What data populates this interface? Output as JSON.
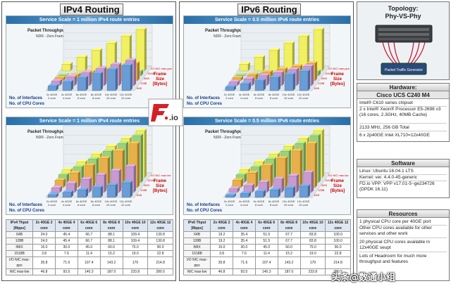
{
  "ipv4": {
    "title": "IPv4 Routing",
    "top_scale": "Service Scale = 1 million IPv4 route entries",
    "bottom_scale": "Service Scale = 1 million IPv4 route entries",
    "top_chart_title": "Packet Throughput [Mpps]",
    "top_chart_sub": "NDR - Zero Frame Loss",
    "bottom_chart_title": "Packet Throughput [Gbps]",
    "bottom_chart_sub": "NDR - Zero Frame Loss"
  },
  "ipv6": {
    "title": "IPv6 Routing",
    "top_scale": "Service Scale = 0.5 million IPv6 route entries",
    "bottom_scale": "Service Scale = 0.5 million IPv6 route entries",
    "top_chart_title": "Packet Throughput [Mpps]",
    "top_chart_sub": "NDR - Zero Frame Loss",
    "bottom_chart_title": "Packet Throughput [Gbps]",
    "bottom_chart_sub": "NDR - Zero Frame Loss"
  },
  "axis_labels": {
    "interfaces": "No. of Interfaces",
    "cores": "No. of CPU Cores",
    "frame_size": "Frame Size [Bytes]"
  },
  "topology": {
    "title": "Topology:",
    "subtitle": "Phy-VS-Phy",
    "caption": "Packet Traffic Generator"
  },
  "hardware": {
    "title": "Hardware:",
    "model": "Cisco UCS C240 M4",
    "lines": [
      "Intel® C610 series chipset",
      "2 x Intel® Xeon® Processor E5-2698 v3 (16 cores, 2.3GHz, 40MB Cache)",
      "2133 MHz, 256 GB Total",
      "6 x 2p40GE Intel XL710=12x40GE"
    ]
  },
  "software": {
    "title": "Software",
    "lines": [
      "Linux: Ubuntu 16.04.1 LTS",
      "Kernel: ver. 4.4.0-45-generic",
      "FD.io VPP: VPP v17.01-5~ge234726 (DPDK 16.11)"
    ]
  },
  "resources": {
    "title": "Resources",
    "lines": [
      "1 physical CPU core per 40GE port",
      "Other CPU cores available for other services and other work",
      "20 physical CPU cores available in 12x40GE seupt",
      "Lots of Headroom for much more throughput and features"
    ]
  },
  "logo_text": ".io",
  "watermark": "头条@数通小组",
  "chart_data": [
    {
      "type": "bar",
      "title": "Packet Throughput [Mpps]",
      "subtitle": "NDR - Zero Frame Loss",
      "categories": [
        "2x 40GE 2 core",
        "4x 40GE 4 core",
        "6x 40GE 6 core",
        "8x 40GE 8 core",
        "10x 40GE 10 core",
        "12x 40GE 12 core"
      ],
      "series": [
        {
          "name": "64B",
          "values": [
            24.0,
            45.4,
            66.7,
            88.1,
            109.4,
            130.8
          ]
        },
        {
          "name": "128B",
          "values": [
            24.0,
            45.4,
            66.7,
            88.1,
            109.4,
            130.8
          ]
        },
        {
          "name": "IMIX",
          "values": [
            15.0,
            30.0,
            45.0,
            60.0,
            75.0,
            90.0
          ]
        },
        {
          "name": "1518B",
          "values": [
            3.8,
            7.6,
            11.4,
            15.2,
            19.0,
            22.8
          ]
        },
        {
          "name": "I/O NIC max-pps",
          "values": [
            35.8,
            71.6,
            107.4,
            143.2,
            179.0,
            214.8
          ]
        }
      ],
      "legend": [
        "I/O NIC max-pps",
        "1518B",
        "IMIX",
        "128B",
        "64B"
      ],
      "table": {
        "header": [
          "IPv4 Thput [Mpps]",
          "2x 40GE 2 core",
          "4x 40GE 4 core",
          "6x 40GE 6 core",
          "8x 40GE 8 core",
          "10x 40GE 10 core",
          "12x 40GE 12 core"
        ],
        "rows": [
          [
            "64B",
            "24.0",
            "45.4",
            "66.7",
            "88.1",
            "109.4",
            "130.8"
          ],
          [
            "128B",
            "24.0",
            "45.4",
            "66.7",
            "88.1",
            "109.4",
            "130.8"
          ],
          [
            "IMIX",
            "15.0",
            "30.0",
            "45.0",
            "60.0",
            "75.0",
            "90.0"
          ],
          [
            "1518B",
            "3.8",
            "7.6",
            "11.4",
            "15.2",
            "19.0",
            "22.8"
          ],
          [
            "I/O NIC max-pps",
            "35.8",
            "71.6",
            "107.4",
            "143.2",
            "179",
            "214.8"
          ],
          [
            "NIC max-bw",
            "46.8",
            "93.5",
            "140.3",
            "187.0",
            "233.8",
            "280.5"
          ]
        ]
      }
    },
    {
      "type": "bar",
      "title": "Packet Throughput [Gbps]",
      "subtitle": "NDR - Zero Frame Loss",
      "categories": [
        "2x 40GE 2 core",
        "4x 40GE 4 core",
        "6x 40GE 6 core",
        "8x 40GE 8 core",
        "10x 40GE 10 core",
        "12x 40GE 12 core"
      ],
      "series": [
        {
          "name": "64B",
          "values": [
            16.1,
            30.5,
            44.8,
            59.2,
            73.5,
            87.9
          ]
        },
        {
          "name": "128B",
          "values": [
            28.4,
            53.8,
            79.0,
            104.4,
            129.6,
            155.0
          ]
        },
        {
          "name": "IMIX",
          "values": [
            43.6,
            87.2,
            130.8,
            174.0,
            218.0,
            261.0
          ]
        },
        {
          "name": "1518B",
          "values": [
            46.8,
            93.5,
            140.3,
            187.0,
            233.8,
            280.5
          ]
        },
        {
          "name": "I/O NIC max-bw",
          "values": [
            46.8,
            93.5,
            140.3,
            187.0,
            233.8,
            280.5
          ]
        }
      ],
      "legend": [
        "I/O NIC max-bw",
        "1518B",
        "IMIX",
        "128B",
        "64B"
      ]
    },
    {
      "type": "bar",
      "title": "Packet Throughput [Mpps]",
      "subtitle": "NDR - Zero Frame Loss",
      "categories": [
        "2x 40GE 2 core",
        "4x 40GE 4 core",
        "6x 40GE 6 core",
        "8x 40GE 8 core",
        "10x 40GE 10 core",
        "12x 40GE 12 core"
      ],
      "series": [
        {
          "name": "64B",
          "values": [
            19.2,
            35.4,
            51.5,
            67.7,
            83.8,
            100.0
          ]
        },
        {
          "name": "128B",
          "values": [
            19.2,
            35.4,
            51.5,
            67.7,
            83.8,
            100.0
          ]
        },
        {
          "name": "IMIX",
          "values": [
            15.0,
            30.0,
            45.0,
            60.0,
            75.0,
            90.0
          ]
        },
        {
          "name": "1518B",
          "values": [
            3.8,
            7.6,
            11.4,
            15.2,
            19.0,
            22.8
          ]
        },
        {
          "name": "I/O NIC max-pps",
          "values": [
            35.8,
            71.6,
            107.4,
            143.2,
            179.0,
            214.8
          ]
        }
      ],
      "legend": [
        "I/O NIC max-pps",
        "1518B",
        "IMIX",
        "128B",
        "64B"
      ],
      "table": {
        "header": [
          "IPv6 Thput [Mpps]",
          "2x 40GE 2 core",
          "4x 40GE 4 core",
          "6x 40GE 6 core",
          "8x 40GE 8 core",
          "10x 40GE 10 core",
          "12x 40GE 12 core"
        ],
        "rows": [
          [
            "64B",
            "19.2",
            "35.4",
            "51.5",
            "67.7",
            "83.8",
            "100.0"
          ],
          [
            "128B",
            "19.2",
            "35.4",
            "51.5",
            "67.7",
            "83.8",
            "100.0"
          ],
          [
            "IMIX",
            "15.0",
            "30.0",
            "45.0",
            "60.0",
            "75.0",
            "90.0"
          ],
          [
            "1518B",
            "3.8",
            "7.6",
            "11.4",
            "15.2",
            "19.0",
            "22.8"
          ],
          [
            "I/O NIC max-pps",
            "35.8",
            "71.6",
            "107.4",
            "143.2",
            "179",
            "214.8"
          ],
          [
            "NIC max-bw",
            "46.8",
            "93.5",
            "140.3",
            "187.0",
            "233.8",
            "280.5"
          ]
        ]
      }
    },
    {
      "type": "bar",
      "title": "Packet Throughput [Gbps]",
      "subtitle": "NDR - Zero Frame Loss",
      "categories": [
        "2x 40GE 2 core",
        "4x 40GE 4 core",
        "6x 40GE 6 core",
        "8x 40GE 8 core",
        "10x 40GE 10 core",
        "12x 40GE 12 core"
      ],
      "series": [
        {
          "name": "64B",
          "values": [
            12.9,
            23.8,
            34.6,
            45.5,
            56.3,
            67.2
          ]
        },
        {
          "name": "128B",
          "values": [
            22.7,
            41.9,
            61.0,
            80.2,
            99.2,
            118.4
          ]
        },
        {
          "name": "IMIX",
          "values": [
            43.6,
            87.2,
            130.8,
            174.0,
            218.0,
            261.0
          ]
        },
        {
          "name": "1518B",
          "values": [
            46.8,
            93.5,
            140.3,
            187.0,
            233.8,
            280.5
          ]
        },
        {
          "name": "I/O NIC max-bw",
          "values": [
            46.8,
            93.5,
            140.3,
            187.0,
            233.8,
            280.5
          ]
        }
      ],
      "legend": [
        "I/O NIC max-bw",
        "1518B",
        "IMIX",
        "128B",
        "64B"
      ]
    }
  ]
}
